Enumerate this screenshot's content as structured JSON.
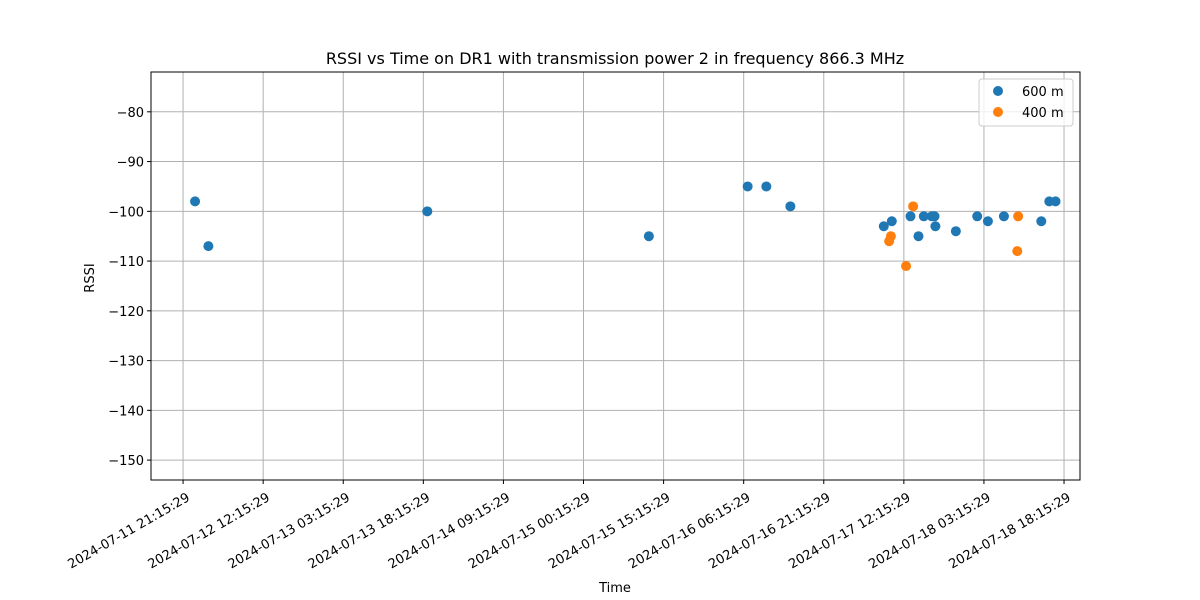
{
  "chart_data": {
    "type": "scatter",
    "title": "RSSI vs Time on DR1 with transmission power 2 in frequency 866.3 MHz",
    "xlabel": "Time",
    "ylabel": "RSSI",
    "xlim": [
      "2024-07-11 15:15:00",
      "2024-07-18 21:15:00"
    ],
    "ylim": [
      -154,
      -72
    ],
    "xticks": [
      "2024-07-11 21:15:29",
      "2024-07-12 12:15:29",
      "2024-07-13 03:15:29",
      "2024-07-13 18:15:29",
      "2024-07-14 09:15:29",
      "2024-07-15 00:15:29",
      "2024-07-15 15:15:29",
      "2024-07-16 06:15:29",
      "2024-07-16 21:15:29",
      "2024-07-17 12:15:29",
      "2024-07-18 03:15:29",
      "2024-07-18 18:15:29"
    ],
    "yticks": [
      -80,
      -90,
      -100,
      -110,
      -120,
      -130,
      -140,
      -150
    ],
    "grid": true,
    "legend_position": "top-right",
    "series": [
      {
        "name": "600 m",
        "color": "#1f77b4",
        "points": [
          {
            "x": "2024-07-11 23:30:00",
            "y": -98
          },
          {
            "x": "2024-07-12 02:00:00",
            "y": -107
          },
          {
            "x": "2024-07-13 19:00:00",
            "y": -100
          },
          {
            "x": "2024-07-15 12:30:00",
            "y": -105
          },
          {
            "x": "2024-07-16 07:00:00",
            "y": -95
          },
          {
            "x": "2024-07-16 10:30:00",
            "y": -95
          },
          {
            "x": "2024-07-16 15:00:00",
            "y": -99
          },
          {
            "x": "2024-07-17 08:30:00",
            "y": -103
          },
          {
            "x": "2024-07-17 10:00:00",
            "y": -102
          },
          {
            "x": "2024-07-17 13:30:00",
            "y": -101
          },
          {
            "x": "2024-07-17 15:00:00",
            "y": -105
          },
          {
            "x": "2024-07-17 16:00:00",
            "y": -101
          },
          {
            "x": "2024-07-17 17:30:00",
            "y": -101
          },
          {
            "x": "2024-07-17 18:00:00",
            "y": -101
          },
          {
            "x": "2024-07-17 18:10:00",
            "y": -103
          },
          {
            "x": "2024-07-17 22:00:00",
            "y": -104
          },
          {
            "x": "2024-07-18 02:00:00",
            "y": -101
          },
          {
            "x": "2024-07-18 04:00:00",
            "y": -102
          },
          {
            "x": "2024-07-18 07:00:00",
            "y": -101
          },
          {
            "x": "2024-07-18 14:00:00",
            "y": -102
          },
          {
            "x": "2024-07-18 15:30:00",
            "y": -98
          },
          {
            "x": "2024-07-18 16:40:00",
            "y": -98
          }
        ]
      },
      {
        "name": "400 m",
        "color": "#ff7f0e",
        "points": [
          {
            "x": "2024-07-17 09:30:00",
            "y": -106
          },
          {
            "x": "2024-07-17 09:50:00",
            "y": -105
          },
          {
            "x": "2024-07-17 12:40:00",
            "y": -111
          },
          {
            "x": "2024-07-17 14:00:00",
            "y": -99
          },
          {
            "x": "2024-07-18 09:30:00",
            "y": -108
          },
          {
            "x": "2024-07-18 09:40:00",
            "y": -101
          }
        ]
      }
    ]
  }
}
